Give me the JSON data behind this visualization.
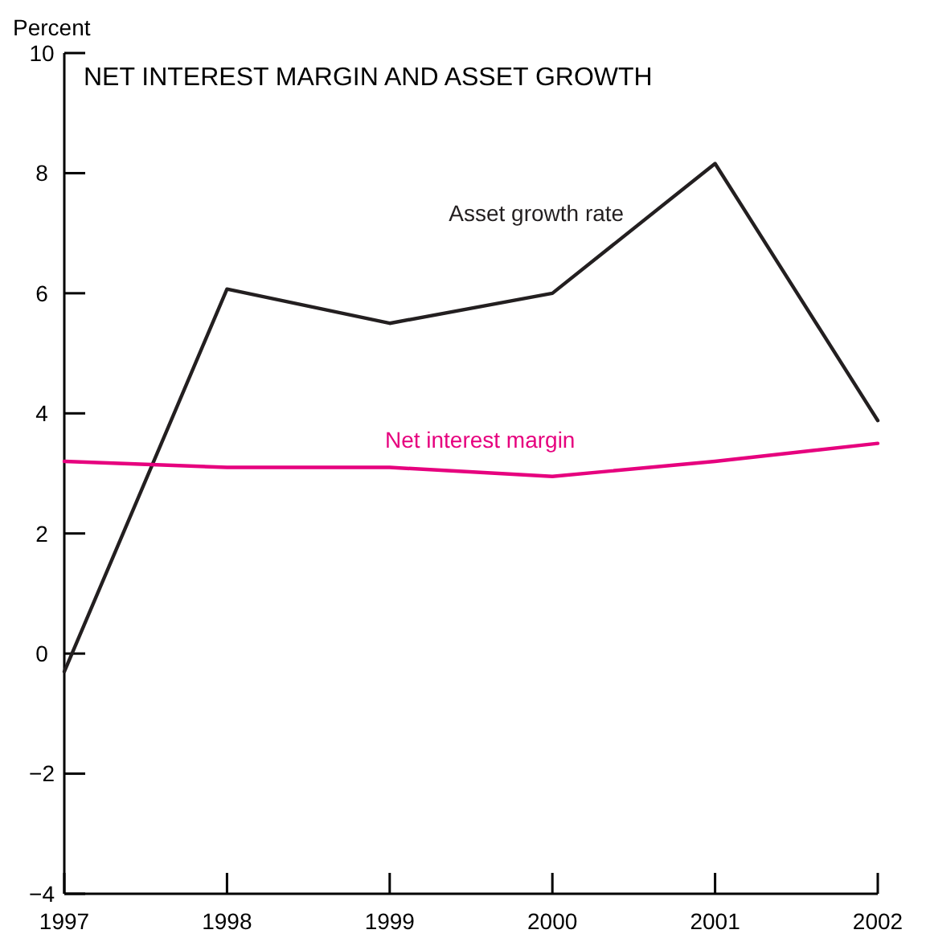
{
  "chart_data": {
    "type": "line",
    "title": "NET INTEREST MARGIN AND ASSET GROWTH",
    "ylabel": "Percent",
    "x": [
      1997,
      1998,
      1999,
      2000,
      2001,
      2002
    ],
    "series": [
      {
        "name": "Asset growth rate",
        "color": "#231f20",
        "values": [
          -0.3,
          6.07,
          5.5,
          6.0,
          8.16,
          3.88
        ]
      },
      {
        "name": "Net interest margin",
        "color": "#e6007e",
        "values": [
          3.2,
          3.1,
          3.1,
          2.95,
          3.2,
          3.5
        ]
      }
    ],
    "xlim": [
      1997,
      2002
    ],
    "xticks": [
      1997,
      1998,
      1999,
      2000,
      2001,
      2002
    ],
    "ylim": [
      -4,
      10
    ],
    "yticks": [
      {
        "value": -4,
        "label": "−4"
      },
      {
        "value": -2,
        "label": "−2"
      },
      0,
      2,
      4,
      6,
      8,
      10
    ],
    "grid": false,
    "legend": false,
    "marker": "none",
    "line_style": "solid"
  }
}
